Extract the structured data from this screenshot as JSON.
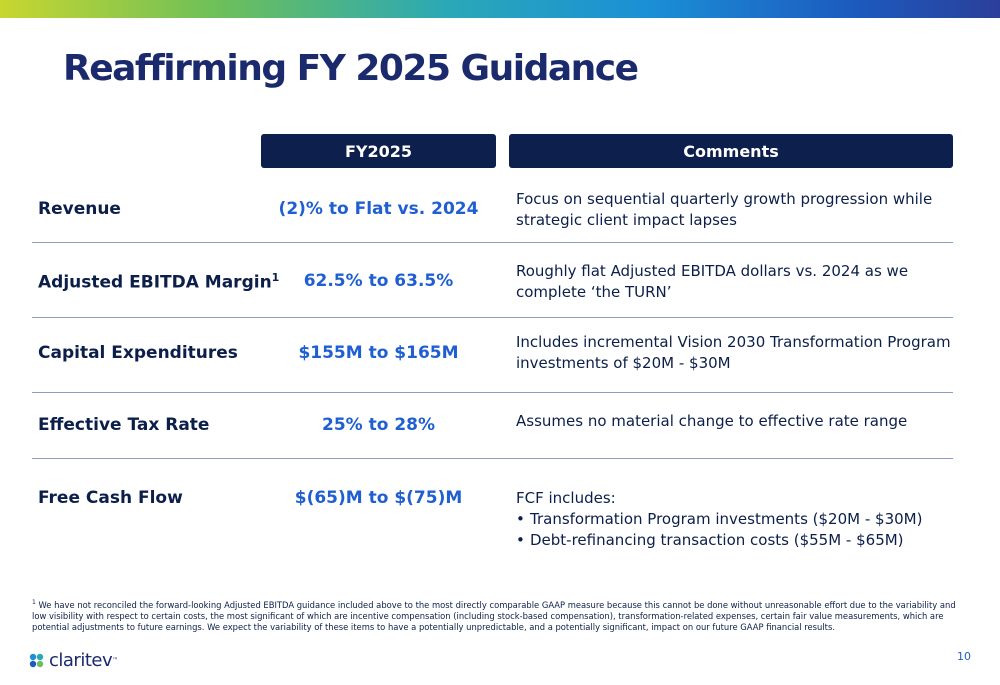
{
  "slide": {
    "title": "Reaffirming FY 2025 Guidance",
    "page_number": "10"
  },
  "headers": {
    "fy": "FY2025",
    "comments": "Comments"
  },
  "rows": [
    {
      "label": "Revenue",
      "value": "(2)% to Flat vs. 2024",
      "comment": "Focus on sequential quarterly growth progression while strategic client impact lapses"
    },
    {
      "label": "Adjusted EBITDA Margin",
      "label_sup": "1",
      "value": "62.5% to 63.5%",
      "comment": "Roughly flat Adjusted EBITDA dollars vs. 2024 as we complete ‘the TURN’"
    },
    {
      "label": "Capital Expenditures",
      "value": "$155M to $165M",
      "comment": "Includes incremental Vision 2030 Transformation Program investments of $20M - $30M"
    },
    {
      "label": "Effective Tax Rate",
      "value": "25% to 28%",
      "comment": "Assumes no material change to effective rate range"
    },
    {
      "label": "Free Cash Flow",
      "value": "$(65)M to $(75)M",
      "comment": "FCF includes:",
      "bullets": [
        "Transformation Program investments ($20M - $30M)",
        "Debt-refinancing transaction costs ($55M - $65M)"
      ]
    }
  ],
  "footnote": {
    "marker": "1",
    "text": "We have not reconciled the forward-looking Adjusted EBITDA guidance included above to the most directly comparable GAAP measure because this cannot be done without unreasonable effort due to the variability and low visibility with respect to certain costs, the most significant of which are incentive compensation (including stock-based compensation), transformation-related expenses, certain fair value measurements, which are potential adjustments to future earnings. We expect the variability of these items to have a potentially unpredictable, and a potentially significant, impact on our future GAAP financial results."
  },
  "logo": {
    "text": "claritev",
    "tm": "™"
  },
  "colors": {
    "navy": "#0d1f4d",
    "title": "#1a2a6c",
    "accent_blue": "#1f5fd1"
  }
}
